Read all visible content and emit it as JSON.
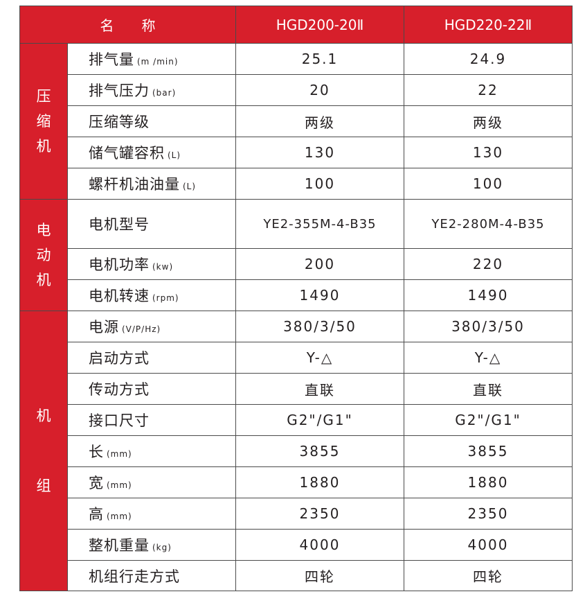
{
  "header": {
    "name": "名　　称",
    "models": [
      "HGD200-20Ⅱ",
      "HGD220-22Ⅱ"
    ]
  },
  "colors": {
    "red": "#d71f2b",
    "border": "#4a4a4a"
  },
  "groups": [
    {
      "label": [
        "压",
        "缩",
        "机"
      ],
      "rows": [
        {
          "label": "排气量",
          "unit": "(m /min)",
          "values": [
            "25.1",
            "24.9"
          ]
        },
        {
          "label": "排气压力",
          "unit": "(bar)",
          "values": [
            "20",
            "22"
          ]
        },
        {
          "label": "压缩等级",
          "unit": "",
          "values": [
            "两级",
            "两级"
          ]
        },
        {
          "label": "储气罐容积",
          "unit": "(L)",
          "values": [
            "130",
            "130"
          ]
        },
        {
          "label": "螺杆机油油量",
          "unit": "(L)",
          "values": [
            "100",
            "100"
          ]
        }
      ]
    },
    {
      "label": [
        "电",
        "动",
        "机"
      ],
      "rows": [
        {
          "label": "电机型号",
          "unit": "",
          "values": [
            "YE2-355M-4-B35",
            "YE2-280M-4-B35"
          ]
        },
        {
          "label": "电机功率",
          "unit": "(kw)",
          "values": [
            "200",
            "220"
          ]
        },
        {
          "label": "电机转速",
          "unit": "(rpm)",
          "values": [
            "1490",
            "1490"
          ]
        }
      ]
    },
    {
      "label": [
        "机",
        "组"
      ],
      "rows": [
        {
          "label": "电源",
          "unit": "(V/P/Hz)",
          "values": [
            "380/3/50",
            "380/3/50"
          ]
        },
        {
          "label": "启动方式",
          "unit": "",
          "values": [
            "Y-△",
            "Y-△"
          ]
        },
        {
          "label": "传动方式",
          "unit": "",
          "values": [
            "直联",
            "直联"
          ]
        },
        {
          "label": "接口尺寸",
          "unit": "",
          "values": [
            "G2\"/G1\"",
            "G2\"/G1\""
          ]
        },
        {
          "label": "长",
          "unit": "(mm)",
          "values": [
            "3855",
            "3855"
          ]
        },
        {
          "label": "宽",
          "unit": "(mm)",
          "values": [
            "1880",
            "1880"
          ]
        },
        {
          "label": "高",
          "unit": "(mm)",
          "values": [
            "2350",
            "2350"
          ]
        },
        {
          "label": "整机重量",
          "unit": "(kg)",
          "values": [
            "4000",
            "4000"
          ]
        },
        {
          "label": "机组行走方式",
          "unit": "",
          "values": [
            "四轮",
            "四轮"
          ]
        }
      ]
    }
  ]
}
